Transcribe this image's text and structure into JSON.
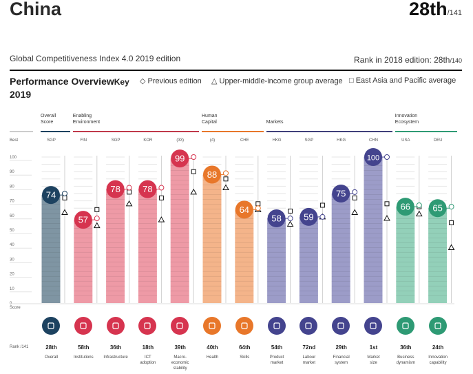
{
  "header": {
    "country": "China",
    "rank": "28th",
    "rank_total": "/141",
    "edition": "Global Competitiveness Index 4.0 2019 edition",
    "rank_2018_label": "Rank in 2018 edition: 28th",
    "rank_2018_total": "/140"
  },
  "performance": {
    "title_line1": "Performance Overview",
    "title_line2": "2019",
    "key_label": "Key",
    "legend": [
      {
        "symbol": "◇",
        "label": "Previous edition"
      },
      {
        "symbol": "△",
        "label": "Upper-middle-income group average"
      },
      {
        "symbol": "□",
        "label": "East Asia and Pacific average"
      }
    ]
  },
  "groups": [
    {
      "label": "Overall\nScore",
      "color": "#1d4260",
      "from": 0,
      "to": 0
    },
    {
      "label": "Enabling\nEnvironment",
      "color": "#c0394a",
      "from": 1,
      "to": 4
    },
    {
      "label": "Human\nCapital",
      "color": "#e8772a",
      "from": 5,
      "to": 6
    },
    {
      "label": "Markets",
      "color": "#3f3f7a",
      "from": 7,
      "to": 10
    },
    {
      "label": "Innovation\nEcosystem",
      "color": "#2e9a74",
      "from": 11,
      "to": 12
    }
  ],
  "axis": {
    "best_label": "Best",
    "score_label": "Score",
    "rank_label": "Rank /141",
    "ticks": [
      0,
      10,
      20,
      30,
      40,
      50,
      60,
      70,
      80,
      90,
      100
    ]
  },
  "chart_data": {
    "type": "bar",
    "title": "Performance Overview 2019",
    "ylabel": "Score",
    "ylim": [
      0,
      100
    ],
    "categories": [
      "Overall",
      "Institutions",
      "Infrastructure",
      "ICT adoption",
      "Macro-economic stability",
      "Health",
      "Skills",
      "Product market",
      "Labour market",
      "Financial system",
      "Market size",
      "Business dynamism",
      "Innovation capability"
    ],
    "best": [
      "SGP",
      "FIN",
      "SGP",
      "KOR",
      "(33)",
      "(4)",
      "CHE",
      "HKG",
      "SGP",
      "HKG",
      "CHN",
      "USA",
      "DEU"
    ],
    "ranks": [
      "28th",
      "58th",
      "36th",
      "18th",
      "39th",
      "40th",
      "64th",
      "54th",
      "72nd",
      "29th",
      "1st",
      "36th",
      "24th"
    ],
    "series": [
      {
        "name": "Score 2019",
        "values": [
          74,
          57,
          78,
          78,
          99,
          88,
          64,
          58,
          59,
          75,
          100,
          66,
          65
        ]
      },
      {
        "name": "Previous edition",
        "values": [
          75,
          58,
          79,
          79,
          100,
          89,
          65,
          58,
          59,
          76,
          100,
          67,
          66
        ]
      },
      {
        "name": "Upper-middle-income group average",
        "values": [
          62,
          53,
          68,
          57,
          76,
          79,
          64,
          54,
          59,
          62,
          58,
          61,
          38
        ]
      },
      {
        "name": "East Asia and Pacific average",
        "values": [
          72,
          64,
          76,
          72,
          90,
          85,
          68,
          63,
          67,
          72,
          68,
          66,
          55
        ]
      }
    ],
    "category_colors": [
      "#1d4260",
      "#d6344f",
      "#d6344f",
      "#d6344f",
      "#d6344f",
      "#e8772a",
      "#e8772a",
      "#44448e",
      "#44448e",
      "#44448e",
      "#44448e",
      "#2e9a74",
      "#2e9a74"
    ],
    "bar_colors": [
      "#7f95a3",
      "#ee9aa6",
      "#ee9aa6",
      "#ee9aa6",
      "#ee9aa6",
      "#f4b48a",
      "#f4b48a",
      "#9c9cc8",
      "#9c9cc8",
      "#9c9cc8",
      "#9c9cc8",
      "#93d0b9",
      "#93d0b9"
    ],
    "labels_multiline": [
      "Overall",
      "Institutions",
      "Infrastructure",
      "ICT\nadoption",
      "Macro-\neconomic\nstability",
      "Health",
      "Skills",
      "Product\nmarket",
      "Labour\nmarket",
      "Financial\nsystem",
      "Market\nsize",
      "Business\ndynamism",
      "Innovation\ncapability"
    ],
    "icons": [
      "award-icon",
      "institution-icon",
      "train-icon",
      "chip-icon",
      "percent-icon",
      "heart-pulse-icon",
      "graduate-icon",
      "tag-icon",
      "network-icon",
      "credit-card-icon",
      "expand-icon",
      "building-icon",
      "lightbulb-icon"
    ]
  }
}
